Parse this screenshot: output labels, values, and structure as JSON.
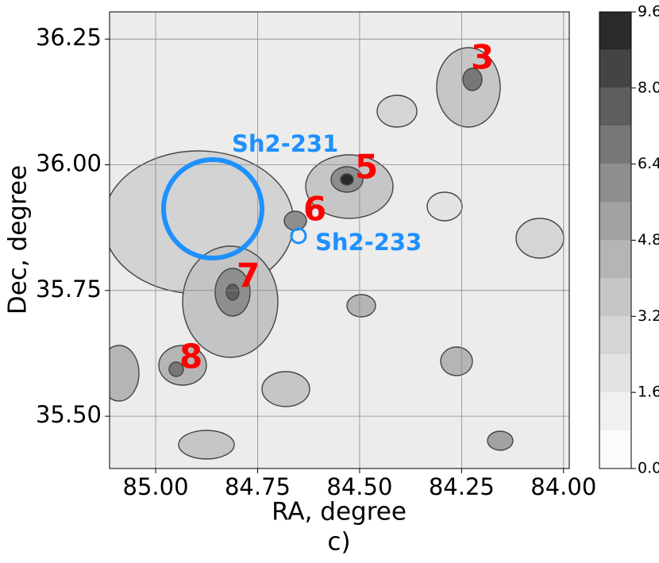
{
  "chart_data": {
    "type": "contour",
    "xlabel": "RA, degree",
    "ylabel": "Dec, degree",
    "caption": "c)",
    "xlim": [
      85.113,
      83.986
    ],
    "ylim": [
      35.396,
      36.304
    ],
    "xticks": [
      {
        "value": 85,
        "label": "85.00"
      },
      84.75,
      {
        "value": 84.5,
        "label": "84.50"
      },
      84.25,
      {
        "value": 84,
        "label": "84.00"
      }
    ],
    "yticks": [
      {
        "value": 35.5,
        "label": "35.50"
      },
      35.75,
      {
        "value": 36,
        "label": "36.00"
      },
      36.25
    ],
    "grid": true,
    "colorbar": {
      "lim": [
        0,
        9.6
      ],
      "ticks": [
        {
          "value": 0,
          "label": "0.0"
        },
        1.6,
        3.2,
        4.8,
        6.4,
        {
          "value": 8,
          "label": "8.0"
        },
        9.6
      ],
      "levels": [
        0,
        0.8,
        1.6,
        2.4,
        3.2,
        4.0,
        4.8,
        5.6,
        6.4,
        7.2,
        8.0,
        8.8,
        9.6
      ],
      "colors": [
        "#fbfbfb",
        "#f0f0f0",
        "#e3e3e3",
        "#d5d5d5",
        "#c6c6c6",
        "#b5b5b5",
        "#a2a2a2",
        "#8e8e8e",
        "#777777",
        "#5e5e5e",
        "#444444",
        "#2a2a2a"
      ]
    },
    "annotations": [
      "3",
      "5",
      "6",
      "7",
      "8"
    ],
    "regions": [
      "Sh2-231",
      "Sh2-233"
    ]
  }
}
